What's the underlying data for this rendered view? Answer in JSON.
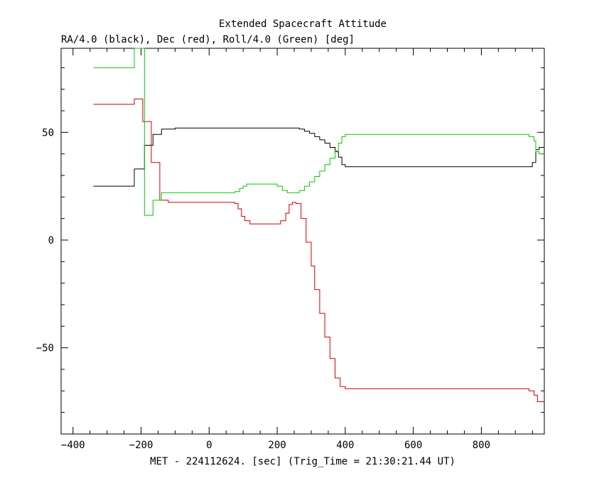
{
  "chart_data": {
    "type": "line",
    "title": "Extended Spacecraft Attitude",
    "subtitle": "RA/4.0 (black), Dec (red), Roll/4.0 (Green) [deg]",
    "xlabel": "MET - 224112624. [sec] (Trig_Time = 21:30:21.44 UT)",
    "ylabel": "",
    "xlim": [
      -435,
      985
    ],
    "ylim": [
      -90,
      89
    ],
    "xticks": [
      -400,
      -200,
      0,
      200,
      400,
      600,
      800
    ],
    "yticks": [
      -50,
      0,
      50
    ],
    "grid": false,
    "series": [
      {
        "color": "#000000",
        "points": [
          [
            -340,
            25
          ],
          [
            -220,
            25
          ],
          [
            -220,
            33
          ],
          [
            -190,
            33
          ],
          [
            -190,
            44
          ],
          [
            -165,
            44
          ],
          [
            -165,
            49
          ],
          [
            -140,
            49
          ],
          [
            -140,
            51.5
          ],
          [
            -100,
            51.5
          ],
          [
            -100,
            52
          ],
          [
            265,
            52
          ],
          [
            265,
            51.5
          ],
          [
            280,
            51.5
          ],
          [
            280,
            50.5
          ],
          [
            295,
            50.5
          ],
          [
            295,
            49.5
          ],
          [
            310,
            49.5
          ],
          [
            310,
            48
          ],
          [
            325,
            48
          ],
          [
            325,
            46.5
          ],
          [
            340,
            46.5
          ],
          [
            340,
            45
          ],
          [
            355,
            45
          ],
          [
            355,
            43
          ],
          [
            370,
            43
          ],
          [
            370,
            41
          ],
          [
            380,
            41
          ],
          [
            380,
            38.5
          ],
          [
            390,
            38.5
          ],
          [
            390,
            35
          ],
          [
            400,
            35
          ],
          [
            400,
            34
          ],
          [
            950,
            34
          ],
          [
            950,
            36
          ],
          [
            960,
            36
          ],
          [
            960,
            42
          ],
          [
            970,
            42
          ],
          [
            970,
            43
          ],
          [
            985,
            43
          ]
        ]
      },
      {
        "color": "#cc0000",
        "points": [
          [
            -340,
            63
          ],
          [
            -220,
            63
          ],
          [
            -220,
            65.5
          ],
          [
            -195,
            65.5
          ],
          [
            -195,
            55
          ],
          [
            -170,
            55
          ],
          [
            -170,
            36
          ],
          [
            -145,
            36
          ],
          [
            -145,
            18.5
          ],
          [
            -120,
            18.5
          ],
          [
            -120,
            17.5
          ],
          [
            75,
            17.5
          ],
          [
            75,
            17
          ],
          [
            85,
            17
          ],
          [
            85,
            14.5
          ],
          [
            95,
            14.5
          ],
          [
            95,
            11
          ],
          [
            105,
            11
          ],
          [
            105,
            9
          ],
          [
            120,
            9
          ],
          [
            120,
            7.5
          ],
          [
            210,
            7.5
          ],
          [
            210,
            9
          ],
          [
            225,
            9
          ],
          [
            225,
            12.5
          ],
          [
            235,
            12.5
          ],
          [
            235,
            16.5
          ],
          [
            245,
            16.5
          ],
          [
            245,
            17.5
          ],
          [
            255,
            17.5
          ],
          [
            255,
            17
          ],
          [
            270,
            17
          ],
          [
            270,
            10
          ],
          [
            285,
            10
          ],
          [
            285,
            -1
          ],
          [
            300,
            -1
          ],
          [
            300,
            -12
          ],
          [
            310,
            -12
          ],
          [
            310,
            -23
          ],
          [
            325,
            -23
          ],
          [
            325,
            -34
          ],
          [
            340,
            -34
          ],
          [
            340,
            -45
          ],
          [
            355,
            -45
          ],
          [
            355,
            -55
          ],
          [
            370,
            -55
          ],
          [
            370,
            -64
          ],
          [
            385,
            -64
          ],
          [
            385,
            -68
          ],
          [
            400,
            -68
          ],
          [
            400,
            -69
          ],
          [
            940,
            -69
          ],
          [
            940,
            -70
          ],
          [
            955,
            -70
          ],
          [
            955,
            -72
          ],
          [
            965,
            -72
          ],
          [
            965,
            -75
          ],
          [
            985,
            -75
          ]
        ]
      },
      {
        "color": "#00cc00",
        "points": [
          [
            -340,
            80
          ],
          [
            -220,
            80
          ],
          [
            -220,
            89
          ],
          [
            -190,
            89
          ],
          [
            -190,
            11.5
          ],
          [
            -165,
            11.5
          ],
          [
            -165,
            18.5
          ],
          [
            -140,
            18.5
          ],
          [
            -140,
            22
          ],
          [
            75,
            22
          ],
          [
            75,
            22.5
          ],
          [
            90,
            22.5
          ],
          [
            90,
            24
          ],
          [
            100,
            24
          ],
          [
            100,
            25
          ],
          [
            110,
            25
          ],
          [
            110,
            26
          ],
          [
            200,
            26
          ],
          [
            200,
            25
          ],
          [
            215,
            25
          ],
          [
            215,
            23
          ],
          [
            230,
            23
          ],
          [
            230,
            22
          ],
          [
            265,
            22
          ],
          [
            265,
            23
          ],
          [
            280,
            23
          ],
          [
            280,
            25
          ],
          [
            295,
            25
          ],
          [
            295,
            27
          ],
          [
            310,
            27
          ],
          [
            310,
            29.5
          ],
          [
            325,
            29.5
          ],
          [
            325,
            32
          ],
          [
            340,
            32
          ],
          [
            340,
            35
          ],
          [
            355,
            35
          ],
          [
            355,
            38
          ],
          [
            370,
            38
          ],
          [
            370,
            41.5
          ],
          [
            380,
            41.5
          ],
          [
            380,
            45
          ],
          [
            390,
            45
          ],
          [
            390,
            48
          ],
          [
            400,
            48
          ],
          [
            400,
            49
          ],
          [
            940,
            49
          ],
          [
            940,
            48
          ],
          [
            955,
            48
          ],
          [
            955,
            46
          ],
          [
            960,
            46
          ],
          [
            960,
            41
          ],
          [
            970,
            41
          ],
          [
            970,
            40
          ],
          [
            985,
            40
          ]
        ]
      }
    ]
  }
}
